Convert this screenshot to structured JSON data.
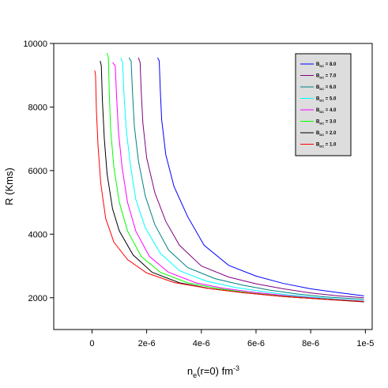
{
  "chart_data": {
    "type": "line",
    "title": "",
    "xlabel": {
      "main": "n",
      "sub": "e",
      "tail": "(r=0) fm",
      "sup": "-3"
    },
    "ylabel": "R (Kms)",
    "xlim": [
      -1.4e-06,
      1.025e-05
    ],
    "ylim": [
      1000,
      10000
    ],
    "xticks": [
      {
        "value": 0,
        "label": "0"
      },
      {
        "value": 2e-06,
        "label": "2e-6"
      },
      {
        "value": 4e-06,
        "label": "4e-6"
      },
      {
        "value": 6e-06,
        "label": "6e-6"
      },
      {
        "value": 8e-06,
        "label": "8e-6"
      },
      {
        "value": 1e-05,
        "label": "1e-5"
      }
    ],
    "yticks": [
      {
        "value": 2000,
        "label": "2000"
      },
      {
        "value": 4000,
        "label": "4000"
      },
      {
        "value": 6000,
        "label": "6000"
      },
      {
        "value": 8000,
        "label": "8000"
      },
      {
        "value": 10000,
        "label": "10000"
      }
    ],
    "grid": false,
    "legend": {
      "placement": "top-right"
    },
    "series": [
      {
        "name": {
          "b": "B",
          "sub": "DC",
          "val": " =  8.0"
        },
        "color": "#0000ff",
        "x": [
          2.4e-06,
          2.46e-06,
          2.5e-06,
          2.55e-06,
          2.7e-06,
          3e-06,
          3.5e-06,
          4.1e-06,
          5e-06,
          6e-06,
          7e-06,
          8e-06,
          9e-06,
          9.95e-06
        ],
        "y": [
          9550,
          9450,
          8500,
          7600,
          6500,
          5500,
          4550,
          3650,
          3020,
          2680,
          2450,
          2280,
          2160,
          2060
        ]
      },
      {
        "name": {
          "b": "B",
          "sub": "DC",
          "val": " =  7.0"
        },
        "color": "#800080",
        "x": [
          1.7e-06,
          1.76e-06,
          1.8e-06,
          1.86e-06,
          2e-06,
          2.3e-06,
          2.7e-06,
          3.2e-06,
          4e-06,
          5e-06,
          6e-06,
          7e-06,
          8e-06,
          9e-06,
          9.95e-06
        ],
        "y": [
          9550,
          9400,
          8500,
          7500,
          6400,
          5300,
          4400,
          3650,
          3000,
          2650,
          2440,
          2280,
          2150,
          2060,
          2000
        ]
      },
      {
        "name": {
          "b": "B",
          "sub": "DC",
          "val": " =  6.0"
        },
        "color": "#008080",
        "x": [
          1.35e-06,
          1.43e-06,
          1.48e-06,
          1.55e-06,
          1.7e-06,
          1.95e-06,
          2.3e-06,
          2.8e-06,
          3.5e-06,
          4.5e-06,
          5.5e-06,
          6.5e-06,
          7.5e-06,
          8.5e-06,
          9.95e-06
        ],
        "y": [
          9550,
          9450,
          8500,
          7400,
          6300,
          5200,
          4300,
          3500,
          2950,
          2600,
          2400,
          2240,
          2120,
          2030,
          1950
        ]
      },
      {
        "name": {
          "b": "B",
          "sub": "DC",
          "val": " =  5.0"
        },
        "color": "#00ffff",
        "x": [
          1.05e-06,
          1.12e-06,
          1.17e-06,
          1.25e-06,
          1.4e-06,
          1.6e-06,
          1.95e-06,
          2.5e-06,
          3.2e-06,
          4.2e-06,
          5.2e-06,
          6.2e-06,
          7.2e-06,
          8.5e-06,
          9.95e-06
        ],
        "y": [
          9550,
          9400,
          8400,
          7300,
          6200,
          5100,
          4200,
          3400,
          2850,
          2520,
          2330,
          2200,
          2090,
          1990,
          1900
        ]
      },
      {
        "name": {
          "b": "B",
          "sub": "DC",
          "val": " =  4.0"
        },
        "color": "#ff00ff",
        "x": [
          7.5e-07,
          8.5e-07,
          9e-07,
          9.7e-07,
          1.1e-06,
          1.3e-06,
          1.6e-06,
          2.1e-06,
          2.8e-06,
          3.8e-06,
          4.8e-06,
          6e-06,
          7.2e-06,
          8.5e-06,
          9.95e-06
        ],
        "y": [
          9400,
          9300,
          8300,
          7200,
          6100,
          5000,
          4100,
          3300,
          2800,
          2470,
          2300,
          2160,
          2060,
          1970,
          1890
        ]
      },
      {
        "name": {
          "b": "B",
          "sub": "DC",
          "val": " =  3.0"
        },
        "color": "#00ff00",
        "x": [
          5.5e-07,
          6e-07,
          6.3e-07,
          6.8e-07,
          8e-07,
          1e-06,
          1.3e-06,
          1.8e-06,
          2.5e-06,
          3.5e-06,
          4.6e-06,
          5.8e-06,
          7e-06,
          8.5e-06,
          9.95e-06
        ],
        "y": [
          9700,
          9550,
          8500,
          7300,
          6100,
          5000,
          4100,
          3300,
          2800,
          2470,
          2290,
          2150,
          2050,
          1960,
          1880
        ]
      },
      {
        "name": {
          "b": "B",
          "sub": "DC",
          "val": " =   2.0"
        },
        "color": "#000000",
        "x": [
          3e-07,
          3.4e-07,
          3.8e-07,
          4.5e-07,
          5.5e-07,
          7.5e-07,
          1e-06,
          1.5e-06,
          2.2e-06,
          3.2e-06,
          4.3e-06,
          5.5e-06,
          7e-06,
          8.5e-06,
          9.95e-06
        ],
        "y": [
          9450,
          9300,
          8200,
          7000,
          5900,
          4800,
          4100,
          3350,
          2800,
          2470,
          2290,
          2160,
          2040,
          1950,
          1870
        ]
      },
      {
        "name": {
          "b": "B",
          "sub": "DC",
          "val": " =  1.0"
        },
        "color": "#ff0000",
        "x": [
          1e-07,
          1.3e-07,
          1.6e-07,
          2.2e-07,
          3.2e-07,
          5e-07,
          8e-07,
          1.3e-06,
          2e-06,
          3e-06,
          4.2e-06,
          5.5e-06,
          7e-06,
          8.5e-06,
          9.95e-06
        ],
        "y": [
          9150,
          9000,
          7900,
          6800,
          5600,
          4500,
          3750,
          3200,
          2780,
          2480,
          2300,
          2160,
          2040,
          1950,
          1880
        ]
      }
    ]
  }
}
